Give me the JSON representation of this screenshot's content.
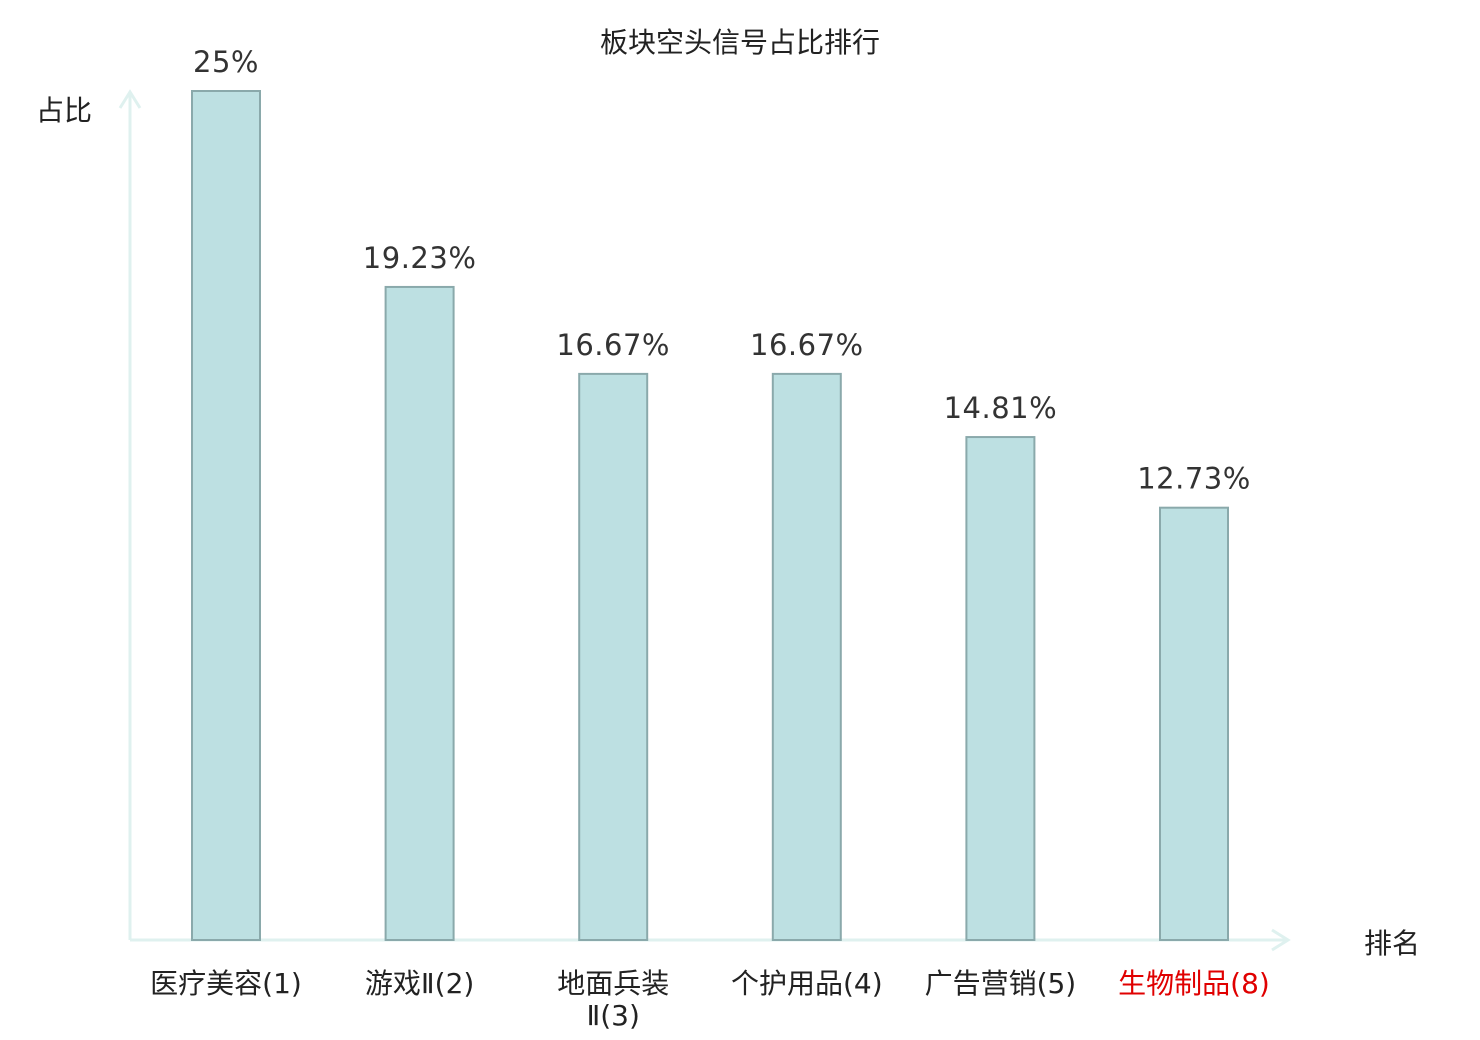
{
  "chart_data": {
    "type": "bar",
    "title": "板块空头信号占比排行",
    "xlabel": "排名",
    "ylabel": "占比",
    "ylim": [
      0,
      25
    ],
    "categories": [
      {
        "lines": [
          "医疗美容(1)"
        ],
        "highlight": false
      },
      {
        "lines": [
          "游戏Ⅱ(2)"
        ],
        "highlight": false
      },
      {
        "lines": [
          "地面兵装",
          "Ⅱ(3)"
        ],
        "highlight": false
      },
      {
        "lines": [
          "个护用品(4)"
        ],
        "highlight": false
      },
      {
        "lines": [
          "广告营销(5)"
        ],
        "highlight": false
      },
      {
        "lines": [
          "生物制品(8)"
        ],
        "highlight": true
      }
    ],
    "values": [
      25,
      19.23,
      16.67,
      16.67,
      14.81,
      12.73
    ],
    "value_labels": [
      "25%",
      "19.23%",
      "16.67%",
      "16.67%",
      "14.81%",
      "12.73%"
    ],
    "grid": false,
    "colors": {
      "bar_fill": "#bde0e2",
      "bar_stroke": "#8aa9ab",
      "axis": "#dff1ef",
      "highlight_text": "#e00000"
    }
  }
}
